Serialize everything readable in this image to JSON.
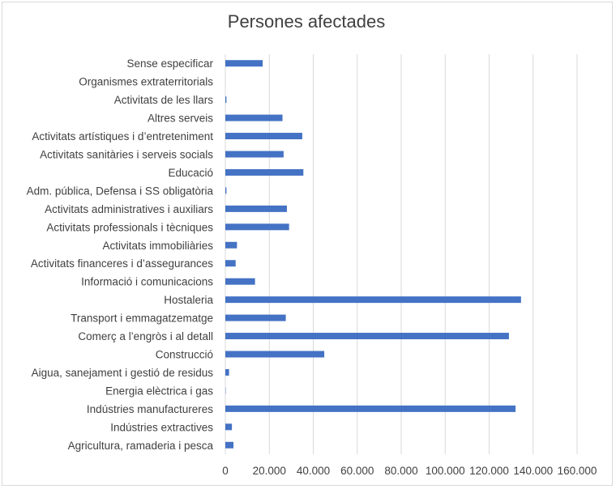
{
  "chart_data": {
    "type": "bar",
    "orientation": "horizontal",
    "title": "Persones afectades",
    "xlabel": "",
    "ylabel": "",
    "categories": [
      "Agricultura, ramaderia i pesca",
      "Indústries extractives",
      "Indústries manufactureres",
      "Energia elèctrica i gas",
      "Aigua, sanejament i gestió de residus",
      "Construcció",
      "Comerç a l’engròs i al detall",
      "Transport i emmagatzematge",
      "Hostaleria",
      "Informació i comunicacions",
      "Activitats financeres i d’assegurances",
      "Activitats immobiliàries",
      "Activitats professionals i tècniques",
      "Activitats administratives i auxiliars",
      "Adm. pública, Defensa i SS obligatòria",
      "Educació",
      "Activitats sanitàries i serveis socials",
      "Activitats artístiques i d’entreteniment",
      "Altres serveis",
      "Activitats de les llars",
      "Organismes extraterritorials",
      "Sense especificar"
    ],
    "values": [
      3700,
      3000,
      132000,
      150,
      1700,
      45000,
      129000,
      27500,
      134500,
      13500,
      4700,
      5300,
      29000,
      28000,
      500,
      35500,
      26500,
      35000,
      26000,
      500,
      0,
      17000
    ],
    "xlim": [
      0,
      160000
    ],
    "ticks": [
      0,
      20000,
      40000,
      60000,
      80000,
      100000,
      120000,
      140000,
      160000
    ],
    "tick_labels": [
      "0",
      "20.000",
      "40.000",
      "60.000",
      "80.000",
      "100.000",
      "120.000",
      "140.000",
      "160.000"
    ],
    "grid": "vertical",
    "bar_color": "#4472C4",
    "grid_color": "#d9d9d9"
  }
}
